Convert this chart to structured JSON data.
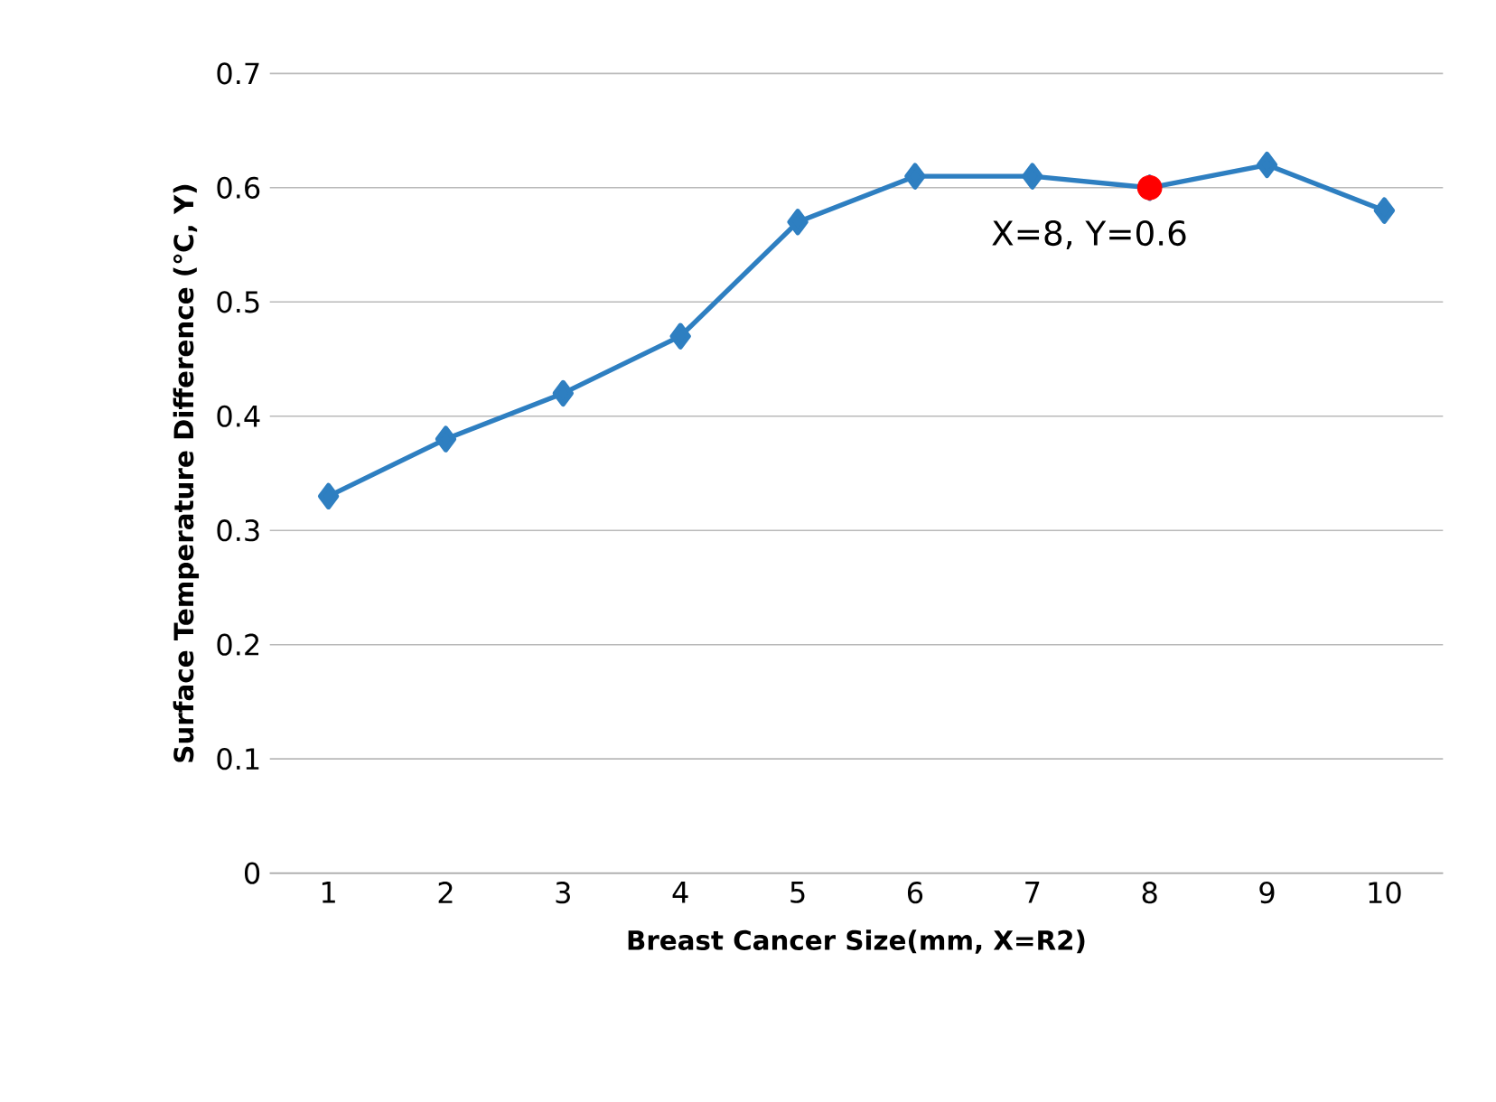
{
  "chart_data": {
    "type": "line",
    "xlabel": "Breast Cancer Size(mm, X=R2)",
    "ylabel": "Surface Temperature Difference (℃, Y)",
    "categories": [
      "1",
      "2",
      "3",
      "4",
      "5",
      "6",
      "7",
      "8",
      "9",
      "10"
    ],
    "series": [
      {
        "color": "#2e7fc1",
        "values": [
          0.33,
          0.38,
          0.42,
          0.47,
          0.57,
          0.61,
          0.61,
          0.6,
          0.62,
          0.58
        ],
        "marker": "diamond"
      },
      {
        "type": "scatter",
        "color": "#ff0000",
        "x": [
          "8"
        ],
        "values": [
          0.6
        ],
        "marker": "circle"
      }
    ],
    "ylim": [
      0,
      0.7
    ],
    "yticks": [
      0,
      0.1,
      0.2,
      0.3,
      0.4,
      0.5,
      0.6,
      0.7
    ],
    "grid": "y",
    "annotations": [
      {
        "text": "X=8, Y=0.6",
        "x": "8",
        "y": 0.6
      }
    ]
  }
}
